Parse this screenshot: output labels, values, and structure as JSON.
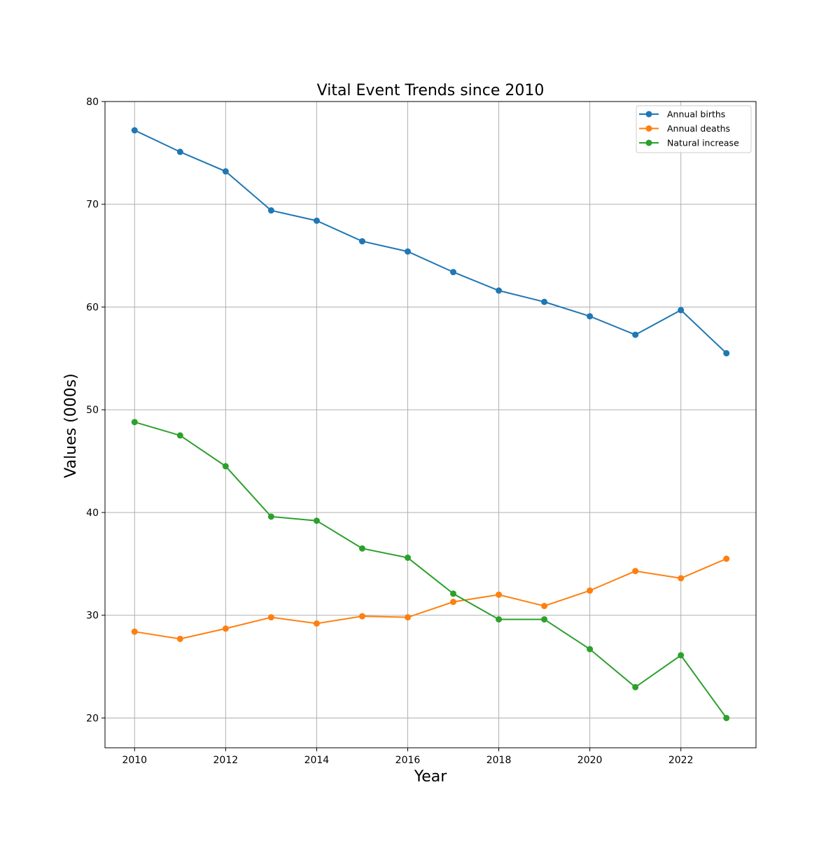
{
  "chart_data": {
    "type": "line",
    "title": "Vital Event Trends since 2010",
    "xlabel": "Year",
    "ylabel": "Values (000s)",
    "x": [
      2010,
      2011,
      2012,
      2013,
      2014,
      2015,
      2016,
      2017,
      2018,
      2019,
      2020,
      2021,
      2022,
      2023
    ],
    "xlim": [
      2009.35,
      2023.65
    ],
    "ylim": [
      17.1,
      80
    ],
    "xticks": [
      2010,
      2012,
      2014,
      2016,
      2018,
      2020,
      2022
    ],
    "yticks": [
      20,
      30,
      40,
      50,
      60,
      70,
      80
    ],
    "grid": true,
    "legend_position": "top-right",
    "series": [
      {
        "name": "Annual births",
        "color": "#1f77b4",
        "values": [
          77.2,
          75.1,
          73.2,
          69.4,
          68.4,
          66.4,
          65.4,
          63.4,
          61.6,
          60.5,
          59.1,
          57.3,
          59.7,
          55.5
        ]
      },
      {
        "name": "Annual deaths",
        "color": "#ff7f0e",
        "values": [
          28.4,
          27.7,
          28.7,
          29.8,
          29.2,
          29.9,
          29.8,
          31.3,
          32.0,
          30.9,
          32.4,
          34.3,
          33.6,
          35.5
        ]
      },
      {
        "name": "Natural increase",
        "color": "#2ca02c",
        "values": [
          48.8,
          47.5,
          44.5,
          39.6,
          39.2,
          36.5,
          35.6,
          32.1,
          29.6,
          29.6,
          26.7,
          23.0,
          26.1,
          20.0
        ]
      }
    ]
  }
}
